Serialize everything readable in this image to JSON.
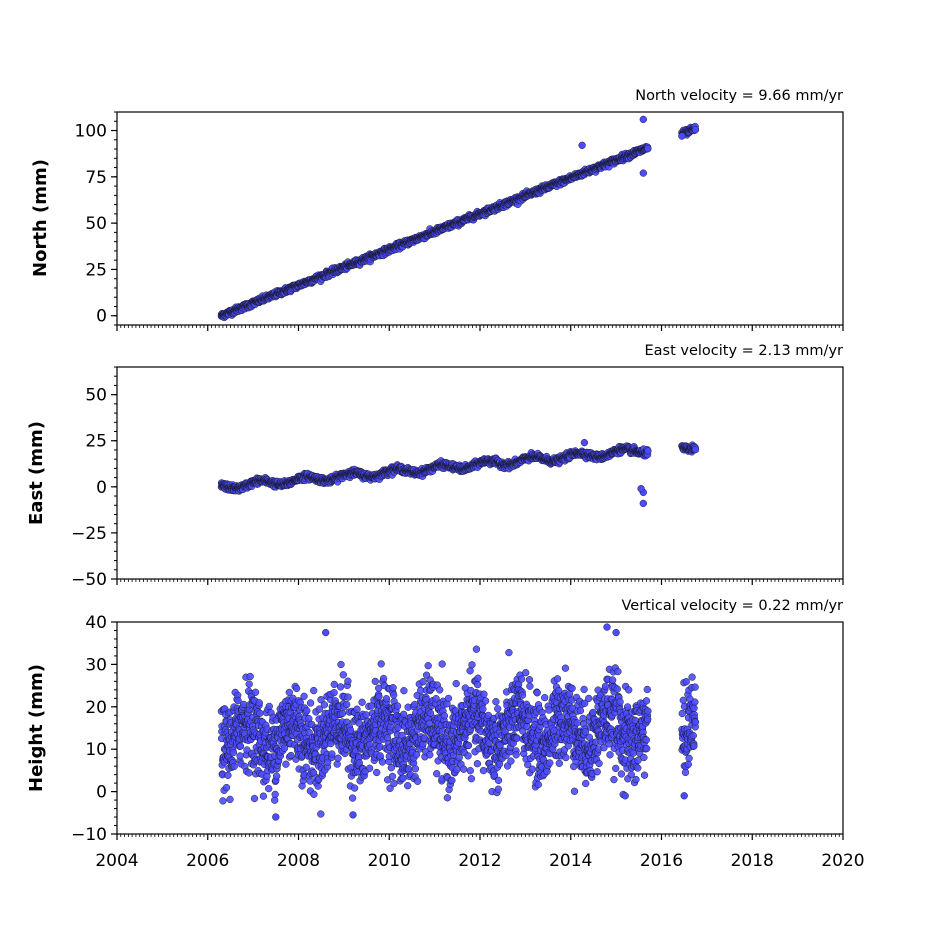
{
  "chart_data": [
    {
      "type": "scatter",
      "title": "North velocity = 9.66 mm/yr",
      "xlabel": "",
      "ylabel": "North (mm)",
      "xlim": [
        2004,
        2020
      ],
      "ylim": [
        -5,
        110
      ],
      "yticks": [
        0,
        25,
        50,
        75,
        100
      ],
      "xticks_labeled": false,
      "point_color": "#4b4bff",
      "edge_color": "#1a1a33",
      "trend": {
        "start_year": 2006.3,
        "start_value": 0,
        "velocity": 9.66
      },
      "scatter_amplitude": 1.5,
      "segments": [
        [
          2006.3,
          2015.7
        ],
        [
          2016.45,
          2016.75
        ]
      ],
      "outliers": [
        [
          2014.25,
          92
        ],
        [
          2015.6,
          106
        ],
        [
          2015.6,
          77
        ],
        [
          2016.45,
          97
        ]
      ]
    },
    {
      "type": "scatter",
      "title": "East velocity = 2.13 mm/yr",
      "xlabel": "",
      "ylabel": "East (mm)",
      "xlim": [
        2004,
        2020
      ],
      "ylim": [
        -50,
        65
      ],
      "yticks": [
        -50,
        -25,
        0,
        25,
        50
      ],
      "xticks_labeled": false,
      "point_color": "#4b4bff",
      "edge_color": "#1a1a33",
      "trend": {
        "start_year": 2006.3,
        "start_value": 0,
        "velocity": 2.13
      },
      "scatter_amplitude": 1.8,
      "segments": [
        [
          2006.3,
          2015.7
        ],
        [
          2016.45,
          2016.75
        ]
      ],
      "outliers": [
        [
          2015.6,
          -9
        ],
        [
          2015.6,
          -3
        ],
        [
          2015.55,
          -1
        ],
        [
          2014.3,
          24
        ]
      ]
    },
    {
      "type": "scatter",
      "title": "Vertical velocity = 0.22 mm/yr",
      "xlabel": "",
      "ylabel": "Height (mm)",
      "xlim": [
        2004,
        2020
      ],
      "ylim": [
        -10,
        40
      ],
      "yticks": [
        -10,
        0,
        10,
        20,
        30,
        40
      ],
      "xticks": [
        2004,
        2006,
        2008,
        2010,
        2012,
        2014,
        2016,
        2018,
        2020
      ],
      "xticks_labeled": true,
      "point_color": "#4b4bff",
      "edge_color": "#1a1a33",
      "trend": {
        "start_year": 2006.3,
        "start_value": 13,
        "velocity": 0.22
      },
      "scatter_amplitude": 7,
      "segments": [
        [
          2006.3,
          2015.7
        ],
        [
          2016.45,
          2016.75
        ]
      ],
      "outliers": [
        [
          2008.6,
          37.5
        ],
        [
          2014.8,
          38.8
        ],
        [
          2015.0,
          37.5
        ],
        [
          2009.2,
          -5.5
        ],
        [
          2007.5,
          -6
        ],
        [
          2016.5,
          -1
        ],
        [
          2015.2,
          -1
        ]
      ]
    }
  ],
  "xtick_labels": [
    "2004",
    "2006",
    "2008",
    "2010",
    "2012",
    "2014",
    "2016",
    "2018",
    "2020"
  ]
}
